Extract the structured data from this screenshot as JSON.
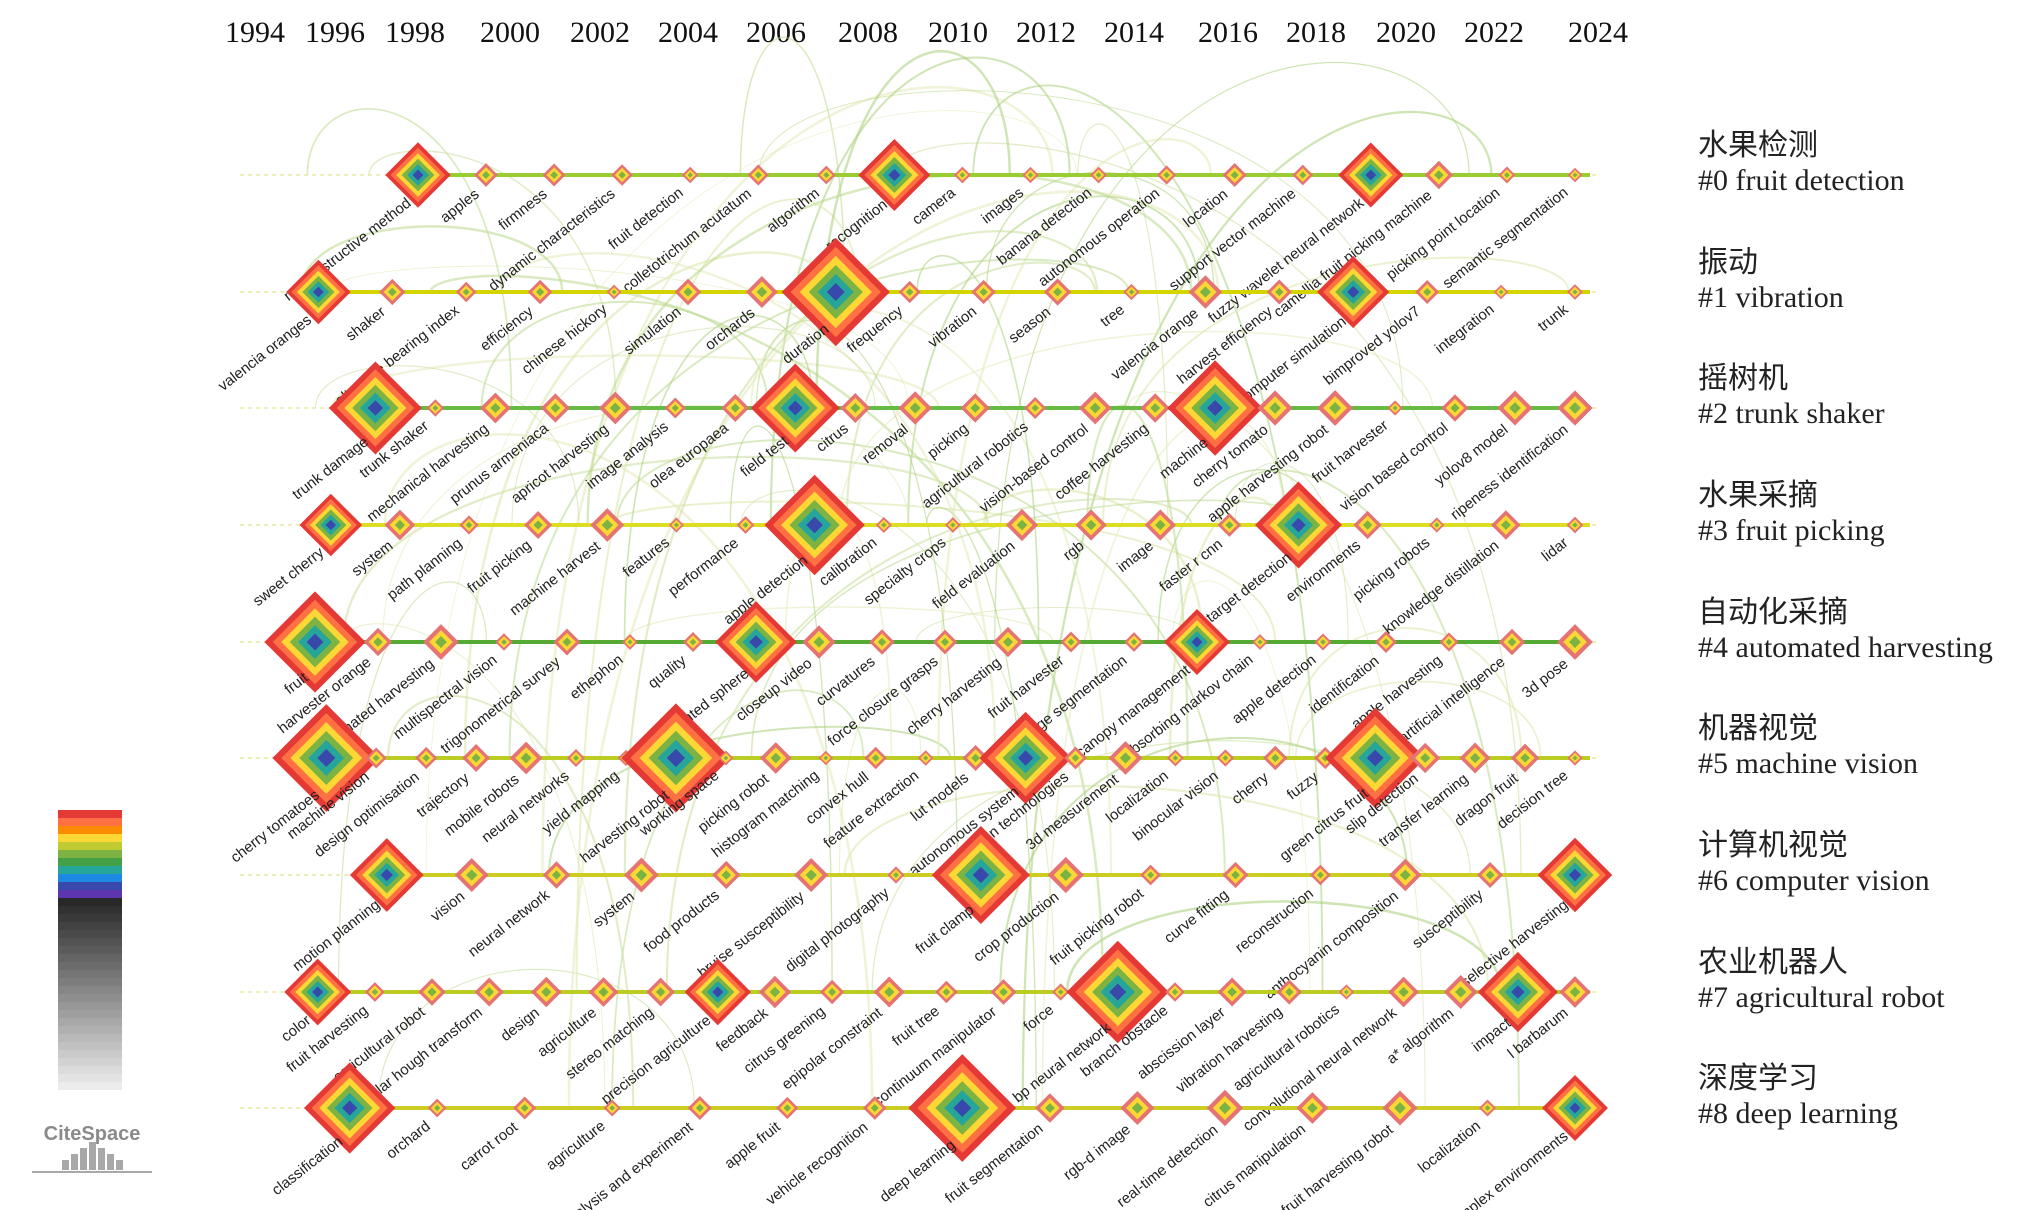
{
  "years": [
    "1994",
    "1996",
    "1998",
    "2000",
    "2002",
    "2004",
    "2006",
    "2008",
    "2010",
    "2012",
    "2014",
    "2016",
    "2018",
    "2020",
    "2022",
    "2024"
  ],
  "clusters": [
    {
      "cn": "水果检测",
      "en": "#0 fruit detection",
      "color": "#9acd32",
      "keywords": [
        "non-destructive method",
        "apples",
        "firmness",
        "dynamic characteristics",
        "fruit detection",
        "colletotrichum acutatum",
        "algorithm",
        "recognition",
        "camera",
        "images",
        "banana detection",
        "autonomous operation",
        "location",
        "support vector machine",
        "fuzzy wavelet neural network",
        "camellia fruit picking machine",
        "picking point location",
        "semantic segmentation"
      ]
    },
    {
      "cn": "振动",
      "en": "#1 vibration",
      "color": "#d4d400",
      "keywords": [
        "valencia oranges",
        "shaker",
        "alternate bearing index",
        "efficiency",
        "chinese hickory",
        "simulation",
        "orchards",
        "duration",
        "frequency",
        "vibration",
        "season",
        "tree",
        "valencia orange",
        "harvest efficiency",
        "computer simulation",
        "bimproved yolov7",
        "integration",
        "trunk"
      ]
    },
    {
      "cn": "摇树机",
      "en": "#2 trunk shaker",
      "color": "#66bb44",
      "keywords": [
        "trunk damage",
        "trunk shaker",
        "mechanical harvesting",
        "prunus armeniaca",
        "apricot harvesting",
        "image analysis",
        "olea europaea",
        "field test",
        "citrus",
        "removal",
        "picking",
        "agricultural robotics",
        "vision-based control",
        "coffee harvesting",
        "machine",
        "cherry tomato",
        "apple harvesting robot",
        "fruit harvester",
        "vision based control",
        "yolov8 model",
        "ripeness identification"
      ]
    },
    {
      "cn": "水果采摘",
      "en": "#3 fruit picking",
      "color": "#dddd22",
      "keywords": [
        "sweet cherry",
        "system",
        "path planning",
        "fruit picking",
        "machine harvest",
        "features",
        "performance",
        "apple detection",
        "calibration",
        "specialty crops",
        "field evaluation",
        "rgb",
        "image",
        "faster r cnn",
        "target detection",
        "environments",
        "picking robots",
        "knowledge distillation",
        "lidar"
      ]
    },
    {
      "cn": "自动化采摘",
      "en": "#4 automated harvesting",
      "color": "#55aa33",
      "keywords": [
        "fruit",
        "harvester orange",
        "automated harvesting",
        "multispectral vision",
        "trigonometrical survey",
        "ethephon",
        "quality",
        "instrumented sphere",
        "closeup video",
        "curvatures",
        "force closure grasps",
        "cherry harvesting",
        "fruit harvester",
        "image segmentation",
        "canopy management",
        "absorbing markov chain",
        "apple detection",
        "identification",
        "apple harvesting",
        "artificial intelligence",
        "3d pose"
      ]
    },
    {
      "cn": "机器视觉",
      "en": "#5 machine vision",
      "color": "#bbcc22",
      "keywords": [
        "cherry tomatoes",
        "machine vision",
        "design optimisation",
        "trajectory",
        "mobile robots",
        "neural networks",
        "yield mapping",
        "harvesting robot",
        "working space",
        "picking robot",
        "histogram matching",
        "convex hull",
        "feature extraction",
        "lut models",
        "autonomous system",
        "automation technologies",
        "3d measurement",
        "localization",
        "binocular vision",
        "cherry",
        "fuzzy",
        "green citrus fruit",
        "slip detection",
        "transfer learning",
        "dragon fruit",
        "decision tree"
      ]
    },
    {
      "cn": "计算机视觉",
      "en": "#6 computer vision",
      "color": "#cccc22",
      "keywords": [
        "motion planning",
        "vision",
        "neural network",
        "system",
        "food products",
        "bruise susceptibility",
        "digital photography",
        "fruit clamp",
        "crop production",
        "fruit picking robot",
        "curve fitting",
        "reconstruction",
        "anthocyanin composition",
        "susceptibility",
        "selective harvesting"
      ]
    },
    {
      "cn": "农业机器人",
      "en": "#7 agricultural robot",
      "color": "#bbcc22",
      "keywords": [
        "color",
        "fruit harvesting",
        "agricultural robot",
        "circular hough transform",
        "design",
        "agriculture",
        "stereo matching",
        "precision agriculture",
        "feedback",
        "citrus greening",
        "epipolar constraint",
        "fruit tree",
        "continuum manipulator",
        "force",
        "bp neural network",
        "branch obstacle",
        "abscission layer",
        "vibration harvesting",
        "agricultural robotics",
        "convolutional neural network",
        "a* algorithm",
        "impact",
        "l barbarum"
      ]
    },
    {
      "cn": "深度学习",
      "en": "#8 deep learning",
      "color": "#cccc22",
      "keywords": [
        "classification",
        "orchard",
        "carrot root",
        "agriculture",
        "analysis and experiment",
        "apple fruit",
        "vehicle recognition",
        "deep learning",
        "fruit segmentation",
        "rgb-d image",
        "real-time detection",
        "citrus manipulation",
        "fruit harvesting robot",
        "localization",
        "complex environments"
      ]
    }
  ],
  "logo": "CiteSpace",
  "legend_colors": [
    "#e53935",
    "#ff7043",
    "#fb8c00",
    "#fdd835",
    "#c0ca33",
    "#7cb342",
    "#43a047",
    "#26a69a",
    "#1e88e5",
    "#3949ab",
    "#5e35b1"
  ]
}
